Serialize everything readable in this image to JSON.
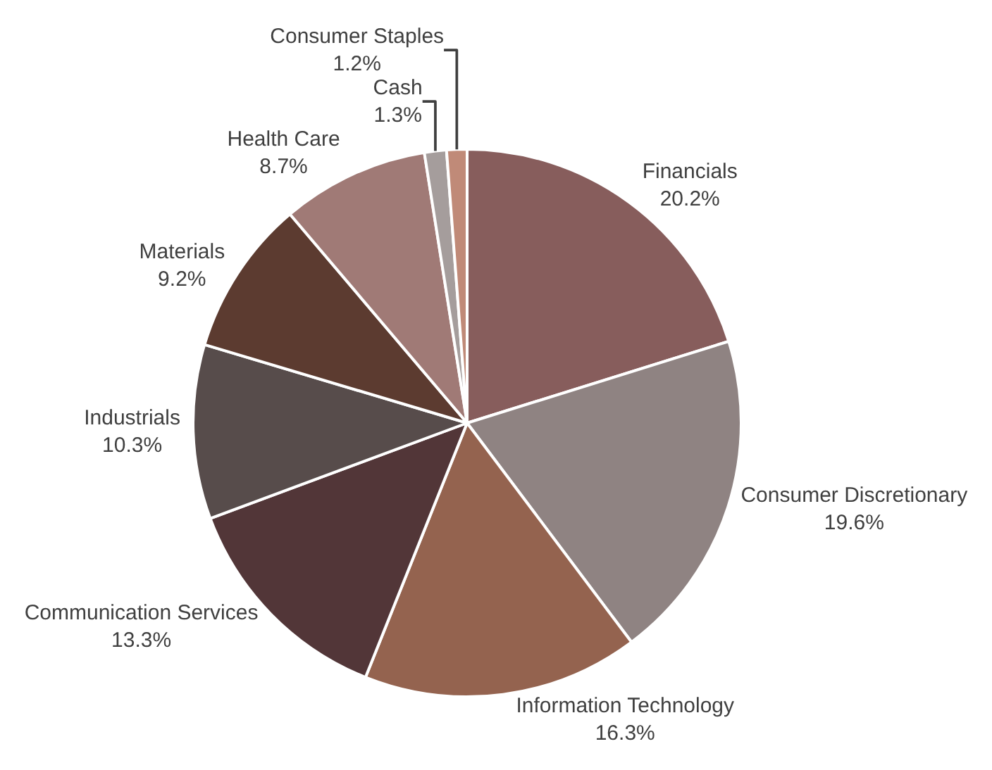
{
  "chart_data": {
    "type": "pie",
    "categories": [
      "Financials",
      "Consumer Discretionary",
      "Information Technology",
      "Communication Services",
      "Industrials",
      "Materials",
      "Health Care",
      "Cash",
      "Consumer Staples"
    ],
    "values": [
      20.2,
      19.6,
      16.3,
      13.3,
      10.3,
      9.2,
      8.7,
      1.3,
      1.2
    ],
    "value_labels": [
      "20.2%",
      "19.6%",
      "16.3%",
      "13.3%",
      "10.3%",
      "9.2%",
      "8.7%",
      "1.3%",
      "1.2%"
    ],
    "colors": [
      "#875d5c",
      "#8f8382",
      "#94634f",
      "#523638",
      "#574c4b",
      "#5c3b30",
      "#a07a76",
      "#a59d9c",
      "#c08a78"
    ],
    "legend": false
  }
}
